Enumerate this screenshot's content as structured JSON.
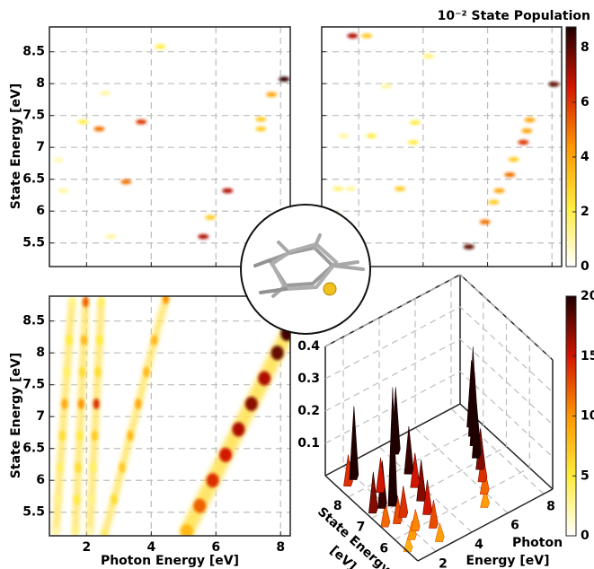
{
  "chart_data": [
    {
      "type": "spot-map",
      "ylabel": "State Energy [eV]",
      "xlim": [
        0.85,
        8.3
      ],
      "ylim": [
        5.13,
        8.89
      ],
      "xticks": [
        2,
        4,
        6,
        8
      ],
      "yticks": [
        5.5,
        6,
        6.5,
        7,
        7.5,
        8,
        8.5
      ],
      "tick_labels": {
        "x": false,
        "y": true
      },
      "points": {
        "x": [
          4.28,
          8.11,
          7.72,
          7.39,
          7.39,
          3.69,
          2.39,
          1.89,
          3.22,
          6.36,
          5.83,
          5.61,
          2.75,
          1.28,
          2.58,
          1.14
        ],
        "y": [
          8.58,
          8.07,
          7.83,
          7.44,
          7.29,
          7.4,
          7.29,
          7.4,
          6.46,
          6.32,
          5.9,
          5.6,
          5.6,
          6.32,
          7.85,
          6.8
        ],
        "values": [
          2,
          8.5,
          4,
          3,
          3,
          6,
          5,
          2,
          5,
          7,
          3,
          7,
          1,
          1,
          1,
          0.8
        ]
      }
    },
    {
      "type": "spot-map",
      "xlim": [
        0.85,
        8.3
      ],
      "ylim": [
        5.13,
        8.89
      ],
      "xticks": [
        2,
        4,
        6,
        8
      ],
      "yticks": [
        5.5,
        6,
        6.5,
        7,
        7.5,
        8,
        8.5
      ],
      "tick_labels": {
        "x": false,
        "y": false
      },
      "points": {
        "x": [
          1.81,
          2.25,
          4.17,
          8.06,
          7.31,
          7.22,
          7.11,
          6.81,
          6.69,
          6.36,
          6.19,
          5.92,
          5.42,
          3.75,
          3.69,
          3.28,
          2.39,
          1.53,
          1.36,
          1.75,
          1.19,
          2.86
        ],
        "y": [
          8.75,
          8.75,
          8.43,
          7.99,
          7.43,
          7.26,
          7.08,
          6.81,
          6.57,
          6.32,
          6.14,
          5.83,
          5.44,
          7.39,
          7.08,
          6.35,
          7.18,
          7.18,
          6.35,
          6.35,
          5.97,
          7.96
        ],
        "values": [
          7,
          3,
          1.5,
          8,
          4,
          4,
          6,
          3,
          5,
          4,
          3,
          5,
          8,
          2,
          2,
          3,
          2,
          1,
          1.5,
          1,
          1,
          1
        ]
      },
      "colorbar": {
        "title": "10⁻² State Population",
        "lim": [
          0,
          8.75
        ],
        "ticks": [
          0,
          2,
          4,
          6,
          8
        ]
      }
    },
    {
      "type": "band-map",
      "xlabel": "Photon Energy [eV]",
      "ylabel": "State Energy [eV]",
      "xlim": [
        0.85,
        8.3
      ],
      "ylim": [
        5.13,
        8.89
      ],
      "xticks": [
        2,
        4,
        6,
        8
      ],
      "yticks": [
        5.5,
        6,
        6.5,
        7,
        7.5,
        8,
        8.5
      ],
      "tick_labels": {
        "x": true,
        "y": true
      },
      "series": [
        {
          "x": [
            1.05,
            1.12,
            1.18,
            1.25,
            1.32,
            1.39,
            1.46,
            1.55
          ],
          "y": [
            5.2,
            5.7,
            6.2,
            6.7,
            7.2,
            7.7,
            8.2,
            8.8
          ],
          "values": [
            2,
            3,
            4,
            6,
            9,
            4,
            5,
            3
          ]
        },
        {
          "x": [
            1.65,
            1.7,
            1.74,
            1.79,
            1.83,
            1.87,
            1.92,
            1.97
          ],
          "y": [
            5.2,
            5.7,
            6.2,
            6.7,
            7.2,
            7.7,
            8.2,
            8.8
          ],
          "values": [
            3,
            5,
            6,
            5,
            10,
            6,
            8,
            12
          ]
        },
        {
          "x": [
            2.1,
            2.15,
            2.2,
            2.25,
            2.3,
            2.35,
            2.4,
            2.45
          ],
          "y": [
            5.2,
            5.7,
            6.2,
            6.7,
            7.2,
            7.7,
            8.2,
            8.8
          ],
          "values": [
            2,
            3,
            4,
            7,
            14,
            6,
            5,
            4
          ]
        },
        {
          "x": [
            2.55,
            2.85,
            3.1,
            3.35,
            3.6,
            3.85,
            4.1,
            4.45
          ],
          "y": [
            5.15,
            5.7,
            6.2,
            6.7,
            7.2,
            7.7,
            8.2,
            8.85
          ],
          "values": [
            4,
            6,
            7,
            8,
            9,
            8,
            8,
            10
          ]
        },
        {
          "x": [
            5.1,
            5.5,
            5.9,
            6.3,
            6.7,
            7.1,
            7.5,
            7.9,
            8.2
          ],
          "y": [
            5.2,
            5.6,
            6.0,
            6.4,
            6.8,
            7.2,
            7.6,
            8.0,
            8.3
          ],
          "values": [
            8,
            12,
            14,
            15,
            16,
            17,
            16,
            18,
            19
          ]
        }
      ]
    },
    {
      "type": "surface3d",
      "xlabel": [
        "Photon",
        "Energy  [eV]"
      ],
      "ylabel": [
        "State Energy",
        "[eV]"
      ],
      "xlim": [
        1,
        8.5
      ],
      "ylim": [
        5,
        9
      ],
      "zlim": [
        0,
        0.4
      ],
      "xticks": [
        2,
        4,
        6,
        8
      ],
      "yticks": [
        6,
        7,
        8
      ],
      "zticks": [
        0.1,
        0.2,
        0.3,
        0.4
      ],
      "spikes": {
        "x": [
          1.1,
          1.25,
          1.35,
          1.5,
          1.7,
          1.8,
          1.85,
          1.95,
          2.15,
          2.25,
          2.3,
          2.4,
          2.6,
          2.9,
          3.2,
          3.5,
          3.8,
          4.1,
          4.4,
          5.5,
          6.0,
          6.4,
          6.8,
          7.1,
          7.5,
          7.8,
          8.1
        ],
        "y": [
          5.5,
          6.6,
          7.2,
          8.4,
          5.8,
          6.5,
          7.2,
          8.5,
          6.0,
          6.6,
          7.1,
          7.7,
          5.3,
          5.8,
          6.3,
          6.8,
          7.3,
          7.8,
          8.6,
          5.6,
          6.0,
          6.4,
          6.8,
          7.2,
          7.6,
          7.9,
          8.2
        ],
        "z": [
          0.04,
          0.07,
          0.12,
          0.09,
          0.05,
          0.08,
          0.14,
          0.22,
          0.06,
          0.09,
          0.36,
          0.1,
          0.05,
          0.08,
          0.1,
          0.12,
          0.1,
          0.14,
          0.2,
          0.05,
          0.07,
          0.09,
          0.12,
          0.16,
          0.22,
          0.27,
          0.2
        ]
      },
      "colorbar": {
        "lim": [
          0,
          20
        ],
        "ticks": [
          0,
          5,
          10,
          15,
          20
        ]
      }
    }
  ]
}
